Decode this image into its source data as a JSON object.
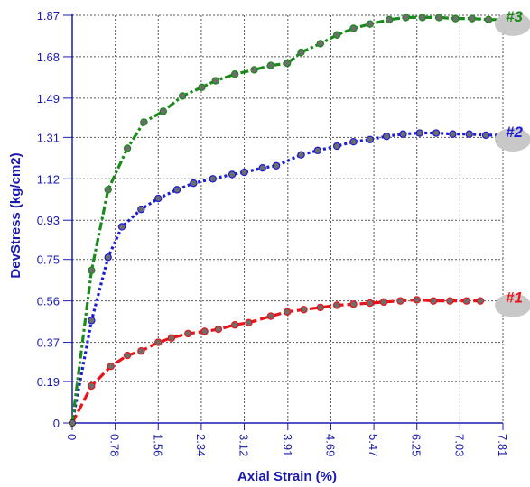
{
  "chart_data": {
    "type": "line",
    "xlabel": "Axial Strain (%)",
    "ylabel": "DevStress (kg/cm2)",
    "xlim": [
      0,
      7.81
    ],
    "ylim": [
      0,
      1.87
    ],
    "x_ticks": [
      "0",
      "0.78",
      "1.56",
      "2.34",
      "3.12",
      "3.91",
      "4.69",
      "5.47",
      "6.25",
      "7.03",
      "7.81"
    ],
    "y_ticks": [
      "0",
      "0.19",
      "0.37",
      "0.56",
      "0.75",
      "0.93",
      "1.12",
      "1.31",
      "1.49",
      "1.68",
      "1.87"
    ],
    "grid": true,
    "series": [
      {
        "name": "#1",
        "color": "#e8141a",
        "dash": "long-dash",
        "points": [
          [
            0.0,
            0.0
          ],
          [
            0.35,
            0.17
          ],
          [
            0.7,
            0.26
          ],
          [
            1.0,
            0.31
          ],
          [
            1.25,
            0.33
          ],
          [
            1.56,
            0.37
          ],
          [
            1.8,
            0.39
          ],
          [
            2.1,
            0.41
          ],
          [
            2.4,
            0.42
          ],
          [
            2.65,
            0.43
          ],
          [
            2.95,
            0.45
          ],
          [
            3.2,
            0.46
          ],
          [
            3.6,
            0.49
          ],
          [
            3.9,
            0.51
          ],
          [
            4.2,
            0.52
          ],
          [
            4.5,
            0.53
          ],
          [
            4.8,
            0.54
          ],
          [
            5.1,
            0.545
          ],
          [
            5.4,
            0.55
          ],
          [
            5.65,
            0.555
          ],
          [
            5.95,
            0.56
          ],
          [
            6.25,
            0.565
          ],
          [
            6.55,
            0.56
          ],
          [
            6.85,
            0.56
          ],
          [
            7.15,
            0.56
          ],
          [
            7.4,
            0.56
          ]
        ]
      },
      {
        "name": "#2",
        "color": "#1c1cd6",
        "dash": "dotted",
        "points": [
          [
            0.0,
            0.0
          ],
          [
            0.35,
            0.47
          ],
          [
            0.65,
            0.76
          ],
          [
            0.9,
            0.9
          ],
          [
            1.25,
            0.98
          ],
          [
            1.56,
            1.03
          ],
          [
            1.9,
            1.07
          ],
          [
            2.2,
            1.1
          ],
          [
            2.55,
            1.12
          ],
          [
            2.9,
            1.14
          ],
          [
            3.12,
            1.15
          ],
          [
            3.45,
            1.17
          ],
          [
            3.7,
            1.18
          ],
          [
            4.15,
            1.23
          ],
          [
            4.45,
            1.25
          ],
          [
            4.8,
            1.27
          ],
          [
            5.1,
            1.29
          ],
          [
            5.4,
            1.3
          ],
          [
            5.7,
            1.315
          ],
          [
            6.0,
            1.325
          ],
          [
            6.3,
            1.33
          ],
          [
            6.6,
            1.33
          ],
          [
            6.9,
            1.325
          ],
          [
            7.2,
            1.325
          ],
          [
            7.5,
            1.32
          ],
          [
            7.8,
            1.32
          ]
        ]
      },
      {
        "name": "#3",
        "color": "#1a8a1a",
        "dash": "dash-dot",
        "points": [
          [
            0.0,
            0.0
          ],
          [
            0.35,
            0.7
          ],
          [
            0.65,
            1.07
          ],
          [
            1.0,
            1.26
          ],
          [
            1.3,
            1.38
          ],
          [
            1.65,
            1.43
          ],
          [
            2.0,
            1.5
          ],
          [
            2.35,
            1.54
          ],
          [
            2.6,
            1.57
          ],
          [
            2.95,
            1.6
          ],
          [
            3.3,
            1.62
          ],
          [
            3.6,
            1.64
          ],
          [
            3.9,
            1.65
          ],
          [
            4.15,
            1.7
          ],
          [
            4.5,
            1.74
          ],
          [
            4.8,
            1.78
          ],
          [
            5.1,
            1.81
          ],
          [
            5.4,
            1.83
          ],
          [
            5.75,
            1.85
          ],
          [
            6.05,
            1.86
          ],
          [
            6.35,
            1.86
          ],
          [
            6.65,
            1.86
          ],
          [
            6.95,
            1.855
          ],
          [
            7.25,
            1.855
          ],
          [
            7.55,
            1.85
          ],
          [
            7.85,
            1.85
          ]
        ]
      }
    ]
  }
}
